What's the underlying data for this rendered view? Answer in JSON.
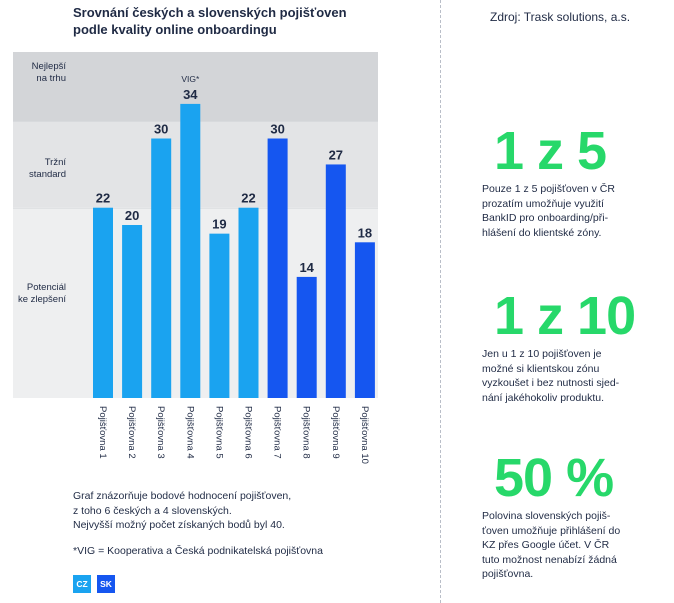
{
  "title_lines": [
    "Srovnání českých a slovenských pojišťoven",
    "podle kvality online onboardingu"
  ],
  "source": "Zdroj: Trask solutions, a.s.",
  "bands": [
    {
      "label_lines": [
        "Nejlepší",
        "na trhu"
      ]
    },
    {
      "label_lines": [
        "Tržní",
        "standard"
      ]
    },
    {
      "label_lines": [
        "Potenciál",
        "ke zlepšení"
      ]
    }
  ],
  "chart_data": {
    "type": "bar",
    "title": "Srovnání českých a slovenských pojišťoven podle kvality online onboardingu",
    "categories": [
      "Pojišťovna 1",
      "Pojišťovna 2",
      "Pojišťovna 3",
      "Pojišťovna 4",
      "Pojišťovna 5",
      "Pojišťovna 6",
      "Pojišťovna 7",
      "Pojišťovna 8",
      "Pojišťovna 9",
      "Pojišťovna 10"
    ],
    "values": [
      22,
      20,
      30,
      34,
      19,
      22,
      30,
      14,
      27,
      18
    ],
    "groups": [
      "CZ",
      "CZ",
      "CZ",
      "CZ",
      "CZ",
      "CZ",
      "SK",
      "SK",
      "SK",
      "SK"
    ],
    "annotations": [
      {
        "category": "Pojišťovna 4",
        "text": "VIG*"
      }
    ],
    "band_edges": [
      0,
      22,
      32,
      40
    ],
    "ylim": [
      0,
      40
    ],
    "colors": {
      "CZ": "#1aa3f0",
      "SK": "#1556f0",
      "band_top": "#d3d5d8",
      "band_mid": "#e3e4e6",
      "band_low": "#eeeff0"
    }
  },
  "description_lines": [
    "Graf znázorňuje bodové hodnocení pojišťoven,",
    "z toho 6 českých a 4 slovenských.",
    "Nejvyšší možný počet získaných bodů byl 40."
  ],
  "footnote": "*VIG = Kooperativa a Česká podnikatelská pojišťovna",
  "legend": [
    "CZ",
    "SK"
  ],
  "stats": [
    {
      "value": "1 z 5",
      "text_lines": [
        "Pouze 1 z 5 pojišťoven v ČR",
        "prozatím umožňuje využití",
        "BankID pro onboarding/při-",
        "hlášení do klientské zóny."
      ]
    },
    {
      "value": "1 z 10",
      "text_lines": [
        "Jen u 1 z 10 pojišťoven je",
        "možné si klientskou zónu",
        "vyzkoušet i bez nutnosti sjed-",
        "nání jakéhokoliv produktu."
      ]
    },
    {
      "value": "50 %",
      "text_lines": [
        "Polovina slovenských pojiš-",
        "ťoven umožňuje přihlášení do",
        "KZ přes Google účet. V ČR",
        "tuto možnost nenabízí žádná",
        "pojišťovna."
      ]
    }
  ],
  "accent_color": "#27d86a"
}
